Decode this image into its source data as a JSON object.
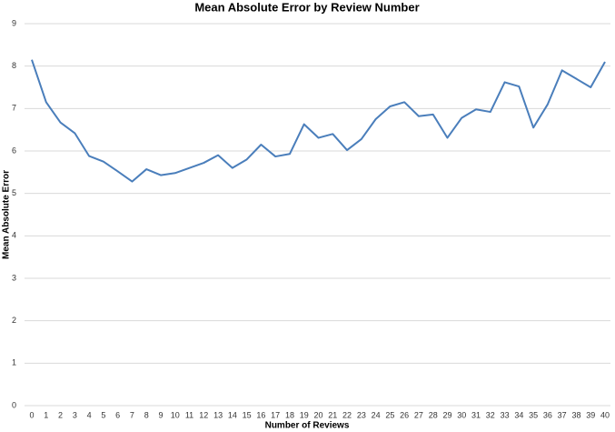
{
  "chart_data": {
    "type": "line",
    "title": "Mean Absolute Error by Review Number",
    "x_label": "Number of Reviews",
    "y_label": "Mean Absolute Error",
    "x": [
      0,
      1,
      2,
      3,
      4,
      5,
      6,
      7,
      8,
      9,
      10,
      11,
      12,
      13,
      14,
      15,
      16,
      17,
      18,
      19,
      20,
      21,
      22,
      23,
      24,
      25,
      26,
      27,
      28,
      29,
      30,
      31,
      32,
      33,
      34,
      35,
      36,
      37,
      38,
      39,
      40
    ],
    "series": [
      {
        "name": "Mean Absolute Error",
        "color": "#4a7ebb",
        "values": [
          8.15,
          7.15,
          6.67,
          6.42,
          5.88,
          5.75,
          5.52,
          5.28,
          5.57,
          5.43,
          5.48,
          5.6,
          5.72,
          5.9,
          5.6,
          5.8,
          6.15,
          5.87,
          5.93,
          6.63,
          6.31,
          6.4,
          6.02,
          6.28,
          6.75,
          7.05,
          7.15,
          6.82,
          6.86,
          6.31,
          6.78,
          6.98,
          6.92,
          7.62,
          7.52,
          6.55,
          7.1,
          7.9,
          7.7,
          7.5,
          8.1
        ]
      }
    ],
    "xlim": [
      0,
      40
    ],
    "xticks": [
      0,
      1,
      2,
      3,
      4,
      5,
      6,
      7,
      8,
      9,
      10,
      11,
      12,
      13,
      14,
      15,
      16,
      17,
      18,
      19,
      20,
      21,
      22,
      23,
      24,
      25,
      26,
      27,
      28,
      29,
      30,
      31,
      32,
      33,
      34,
      35,
      36,
      37,
      38,
      39,
      40
    ],
    "ylim": [
      0,
      9
    ],
    "yticks": [
      0,
      1,
      2,
      3,
      4,
      5,
      6,
      7,
      8,
      9
    ],
    "grid": true
  }
}
